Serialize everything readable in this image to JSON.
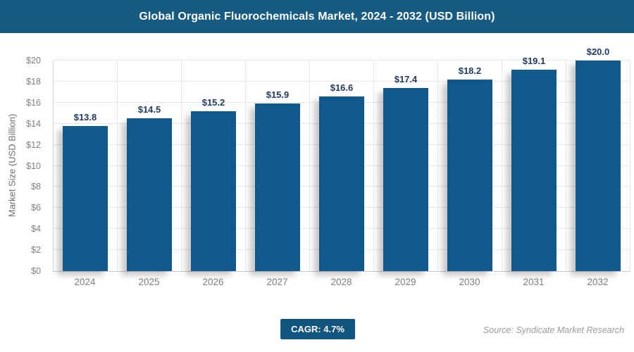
{
  "header": {
    "title": "Global Organic Fluorochemicals Market, 2024 - 2032 (USD Billion)"
  },
  "chart_data": {
    "type": "bar",
    "title": "Global Organic Fluorochemicals Market, 2024 - 2032 (USD Billion)",
    "categories": [
      "2024",
      "2025",
      "2026",
      "2027",
      "2028",
      "2029",
      "2030",
      "2031",
      "2032"
    ],
    "values": [
      13.8,
      14.5,
      15.2,
      15.9,
      16.6,
      17.4,
      18.2,
      19.1,
      20.0
    ],
    "value_labels": [
      "$13.8",
      "$14.5",
      "$15.2",
      "$15.9",
      "$16.6",
      "$17.4",
      "$18.2",
      "$19.1",
      "$20.0"
    ],
    "xlabel": "",
    "ylabel": "Market Size (USD Billion)",
    "ylim": [
      0,
      20
    ],
    "yticks": [
      0,
      2,
      4,
      6,
      8,
      10,
      12,
      14,
      16,
      18,
      20
    ],
    "ytick_labels": [
      "$0",
      "$2",
      "$4",
      "$6",
      "$8",
      "$10",
      "$12",
      "$14",
      "$16",
      "$18",
      "$20"
    ],
    "grid": "horizontal gridlines at every $2 plus vertical category-boundary gridlines, light gray",
    "legend": "none",
    "bar_shadow": "soft shadow offset down-left"
  },
  "footer": {
    "cagr_label": "CAGR: 4.7%",
    "source": "Source: Syndicate Market Research"
  },
  "colors": {
    "header_bg": "#175b82",
    "bar": "#0f5a8a",
    "value_label": "#1e3a5f",
    "badge_bg": "#11547e",
    "tick_label": "#7f7f7f",
    "axis_title": "#6e6e6e",
    "gridline": "#e9e9e9",
    "axis_line": "#c8c8c8",
    "source_text": "#9a9a9a"
  }
}
